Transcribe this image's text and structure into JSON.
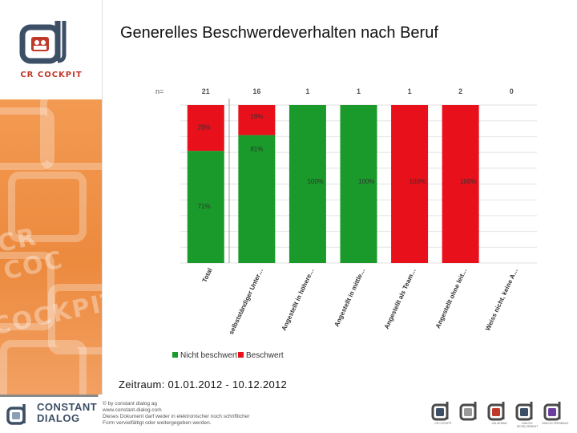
{
  "sidebar": {
    "logo_text": "CR COCKPIT"
  },
  "page": {
    "title": "Generelles Beschwerdeverhalten nach Beruf",
    "period": "Zeitraum: 01.01.2012 - 10.12.2012"
  },
  "colors": {
    "green": "#1a9a2a",
    "red": "#e8101a",
    "accent_orange": "#ef8e42",
    "brand_dark": "#3d4f66"
  },
  "chart_data": {
    "type": "bar",
    "stacked": true,
    "title": "",
    "n_label": "n=",
    "categories": [
      "Total",
      "selbstständiger Unter…",
      "Angestellt in höhere…",
      "Angestellt in mittle…",
      "Angestellt als Team…",
      "Angestellt ohne leit…",
      "Weiss nicht, keine A…"
    ],
    "n_values": [
      "21",
      "16",
      "1",
      "1",
      "1",
      "2",
      "0"
    ],
    "series": [
      {
        "name": "Nicht beschwert",
        "color": "#1a9a2a",
        "values": [
          71,
          81,
          100,
          100,
          0,
          0,
          0
        ]
      },
      {
        "name": "Beschwert",
        "color": "#e8101a",
        "values": [
          29,
          19,
          0,
          0,
          100,
          100,
          0
        ]
      }
    ],
    "data_labels": [
      {
        "nicht": "71%",
        "beschwert": "29%"
      },
      {
        "nicht": "81%",
        "beschwert": "19%"
      },
      {
        "nicht": "100%",
        "beschwert": ""
      },
      {
        "nicht": "100%",
        "beschwert": ""
      },
      {
        "nicht": "",
        "beschwert": "100%"
      },
      {
        "nicht": "",
        "beschwert": "100%"
      },
      {
        "nicht": "",
        "beschwert": ""
      }
    ],
    "ylim": [
      0,
      100
    ],
    "grid": true,
    "legend_position": "bottom"
  },
  "footer": {
    "brand_line1": "CONSTANT",
    "brand_line2": "DIALOG",
    "copyright_lines": [
      "© by constant dialog ag",
      "www.constant-dialog.com",
      "Dieses Dokument darf weder in elektronischer noch schriftlicher",
      "Form vervielfältigt oder weitergegeben werden."
    ],
    "products": [
      {
        "label": "CR COCKPIT",
        "color": "#3d4f66"
      },
      {
        "label": "",
        "color": "#9a9a9a"
      },
      {
        "label": "VALUEMAN",
        "color": "#c0392b"
      },
      {
        "label": "DIALOG DEVELOPMENT",
        "color": "#3d4f66"
      },
      {
        "label": "DIALOG FEEDBACK",
        "color": "#6b3fa0"
      }
    ]
  }
}
